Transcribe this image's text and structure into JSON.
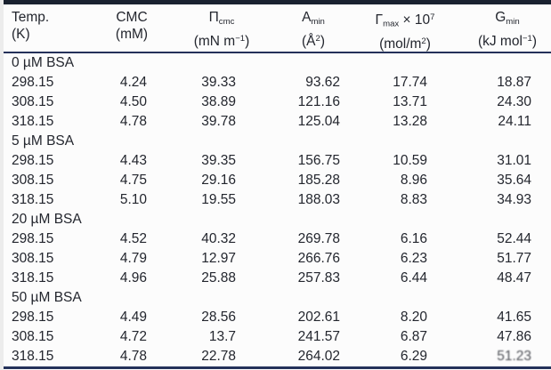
{
  "page": {
    "background": "#fcfcfc",
    "text_color": "#23262e",
    "rule_color": "#24315a",
    "top_rule_color": "#1a2230"
  },
  "table": {
    "columns": [
      {
        "id": "temp",
        "align": "left",
        "line1": [
          {
            "t": "Temp."
          }
        ],
        "line2": [
          {
            "t": "(K)"
          }
        ]
      },
      {
        "id": "cmc",
        "align": "right",
        "line1": [
          {
            "t": "CMC"
          }
        ],
        "line2": [
          {
            "t": "(mM)"
          }
        ]
      },
      {
        "id": "pi-cmc",
        "align": "right",
        "line1": [
          {
            "t": "Π"
          },
          {
            "t": "cmc",
            "s": "sub"
          }
        ],
        "line2": [
          {
            "t": "(mN m"
          },
          {
            "t": "−1",
            "s": "sup"
          },
          {
            "t": ")"
          }
        ]
      },
      {
        "id": "a-min",
        "align": "right",
        "line1": [
          {
            "t": "A"
          },
          {
            "t": "min",
            "s": "sub"
          }
        ],
        "line2": [
          {
            "t": "(Å"
          },
          {
            "t": "2",
            "s": "sup"
          },
          {
            "t": ")"
          }
        ]
      },
      {
        "id": "gamma-max",
        "align": "right",
        "line1": [
          {
            "t": "Γ"
          },
          {
            "t": "max",
            "s": "sub"
          },
          {
            "t": " × 10"
          },
          {
            "t": "7",
            "s": "sup"
          }
        ],
        "line2": [
          {
            "t": "(mol/m"
          },
          {
            "t": "2",
            "s": "sup"
          },
          {
            "t": ")"
          }
        ]
      },
      {
        "id": "g-min",
        "align": "right",
        "line1": [
          {
            "t": "G"
          },
          {
            "t": "min",
            "s": "sub"
          }
        ],
        "line2": [
          {
            "t": "(kJ mol"
          },
          {
            "t": "−1",
            "s": "sup"
          },
          {
            "t": ")"
          }
        ]
      }
    ],
    "sections": [
      {
        "label": "0 µM BSA",
        "rows": [
          [
            "298.15",
            "4.24",
            "39.33",
            "93.62",
            "17.74",
            "18.87"
          ],
          [
            "308.15",
            "4.50",
            "38.89",
            "121.16",
            "13.71",
            "24.30"
          ],
          [
            "318.15",
            "4.78",
            "39.78",
            "125.04",
            "13.28",
            "24.11"
          ]
        ]
      },
      {
        "label": "5 µM BSA",
        "rows": [
          [
            "298.15",
            "4.43",
            "39.35",
            "156.75",
            "10.59",
            "31.01"
          ],
          [
            "308.15",
            "4.75",
            "29.16",
            "185.28",
            "8.96",
            "35.64"
          ],
          [
            "318.15",
            "5.10",
            "19.55",
            "188.03",
            "8.83",
            "34.93"
          ]
        ]
      },
      {
        "label": "20 µM BSA",
        "rows": [
          [
            "298.15",
            "4.52",
            "40.32",
            "269.78",
            "6.16",
            "52.44"
          ],
          [
            "308.15",
            "4.79",
            "12.97",
            "266.76",
            "6.23",
            "51.77"
          ],
          [
            "318.15",
            "4.96",
            "25.88",
            "257.83",
            "6.44",
            "48.47"
          ]
        ]
      },
      {
        "label": "50 µM BSA",
        "rows": [
          [
            "298.15",
            "4.49",
            "28.56",
            "202.61",
            "8.20",
            "41.65"
          ],
          [
            "308.15",
            "4.72",
            "13.7",
            "241.57",
            "6.87",
            "47.86"
          ],
          [
            "318.15",
            "4.78",
            "22.78",
            "264.02",
            "6.29",
            "51.23"
          ]
        ]
      }
    ],
    "degraded_cell": {
      "section": 3,
      "row": 2,
      "col": 5
    }
  }
}
